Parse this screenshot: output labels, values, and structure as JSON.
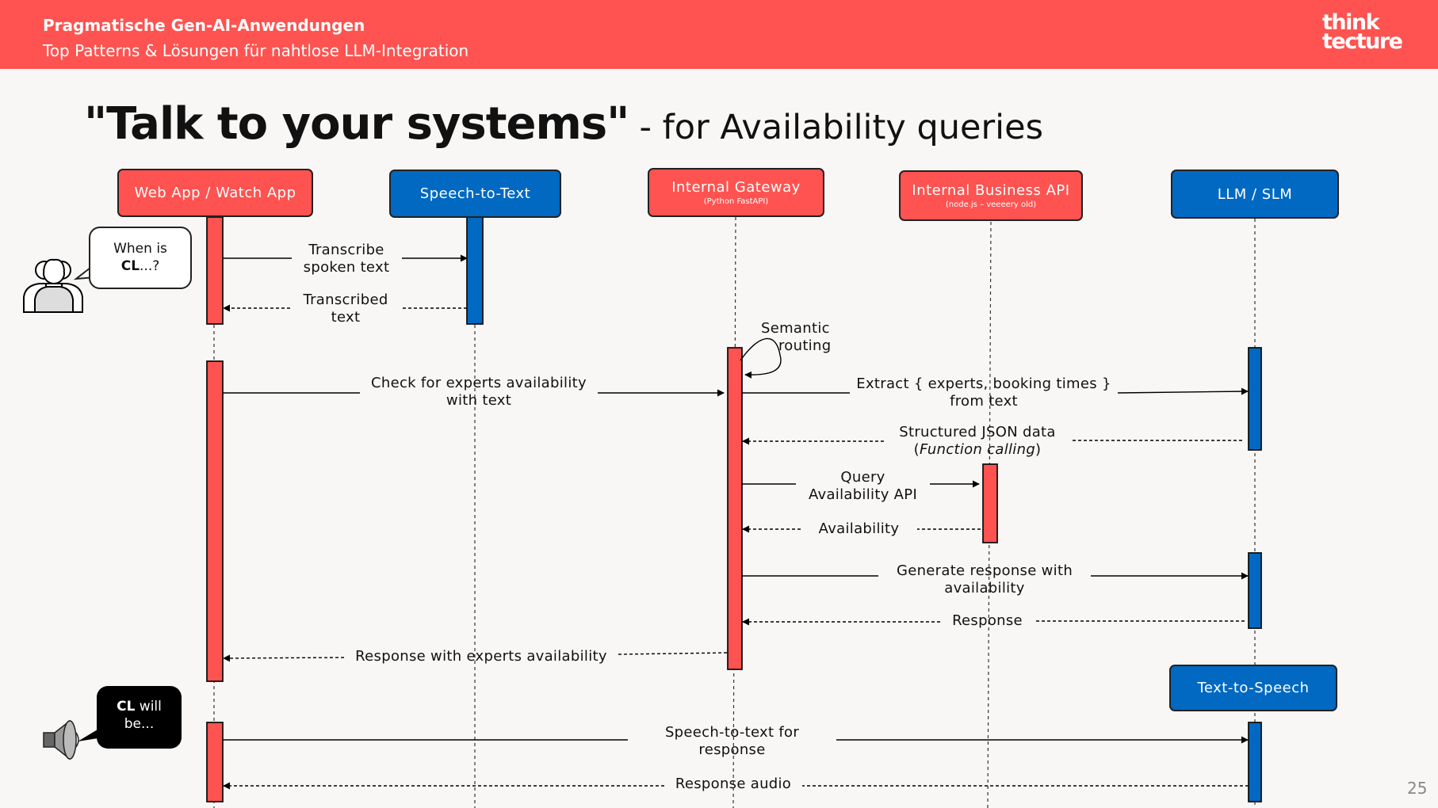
{
  "header": {
    "title": "Pragmatische Gen-AI-Anwendungen",
    "subtitle": "Top Patterns & Lösungen für nahtlose LLM-Integration",
    "logo_line1": "think",
    "logo_line2": "tecture",
    "color": "#fe5350"
  },
  "slide": {
    "title_strong": "\"Talk to your systems\"",
    "title_light": "- for Availability queries",
    "page_number": "25"
  },
  "actors": {
    "web_app": {
      "label": "Web App / Watch App",
      "color": "#fe5350"
    },
    "speech_to_text": {
      "label": "Speech-to-Text",
      "color": "#0169c2"
    },
    "gateway": {
      "label": "Internal Gateway",
      "sublabel": "(Python FastAPI)",
      "color": "#fe5350"
    },
    "business_api": {
      "label": "Internal Business API",
      "sublabel": "(node.js – veeeery old)",
      "color": "#fe5350"
    },
    "llm": {
      "label": "LLM / SLM",
      "color": "#0169c2"
    },
    "tts": {
      "label": "Text-to-Speech",
      "color": "#0169c2"
    }
  },
  "bubbles": {
    "question_prefix": "When is",
    "question_bold": "CL",
    "question_suffix": "...?",
    "answer_bold": "CL",
    "answer_rest": " will",
    "answer_line2": "be..."
  },
  "messages": {
    "transcribe": [
      "Transcribe",
      "spoken text"
    ],
    "transcribed": [
      "Transcribed",
      "text"
    ],
    "semantic_routing": [
      "Semantic",
      "routing"
    ],
    "check_experts": [
      "Check for experts availability",
      "with text"
    ],
    "extract": [
      "Extract { experts, booking times }",
      "from text"
    ],
    "structured_json": "Structured JSON data",
    "function_calling": "Function calling",
    "query_api": [
      "Query",
      "Availability API"
    ],
    "availability": "Availability",
    "generate_response": [
      "Generate response with",
      "availability"
    ],
    "response": "Response",
    "response_experts": "Response with experts availability",
    "speech_for_response": [
      "Speech-to-text for",
      "response"
    ],
    "response_audio": "Response audio"
  },
  "icons": {
    "user": "user-group-icon",
    "speaker": "speaker-icon"
  }
}
